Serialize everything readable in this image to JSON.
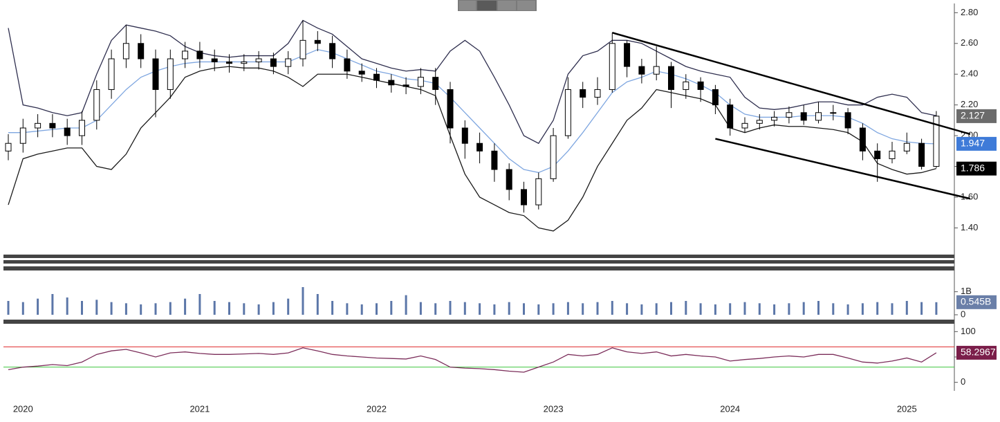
{
  "chart_data": [
    {
      "type": "candlestick",
      "categories": [
        null,
        "2020",
        null,
        null,
        null,
        null,
        null,
        null,
        null,
        null,
        null,
        null,
        null,
        "2021",
        null,
        null,
        null,
        null,
        null,
        null,
        null,
        null,
        null,
        null,
        null,
        "2022",
        null,
        null,
        null,
        null,
        null,
        null,
        null,
        null,
        null,
        null,
        null,
        "2023",
        null,
        null,
        null,
        null,
        null,
        null,
        null,
        null,
        null,
        null,
        null,
        "2024",
        null,
        null,
        null,
        null,
        null,
        null,
        null,
        null,
        null,
        null,
        null,
        "2025",
        null,
        null
      ],
      "open": [
        1.9,
        1.95,
        2.05,
        2.08,
        2.05,
        2.0,
        2.1,
        2.3,
        2.5,
        2.6,
        2.5,
        2.3,
        2.5,
        2.55,
        2.5,
        2.48,
        2.47,
        2.48,
        2.5,
        2.45,
        2.5,
        2.62,
        2.6,
        2.5,
        2.42,
        2.4,
        2.36,
        2.33,
        2.32,
        2.38,
        2.3,
        2.05,
        1.95,
        1.9,
        1.78,
        1.65,
        1.55,
        1.72,
        2.0,
        2.3,
        2.25,
        2.3,
        2.6,
        2.45,
        2.4,
        2.45,
        2.3,
        2.35,
        2.3,
        2.2,
        2.05,
        2.08,
        2.1,
        2.12,
        2.15,
        2.1,
        2.15,
        2.15,
        2.05,
        1.9,
        1.85,
        1.9,
        1.95,
        1.8
      ],
      "high": [
        2.01,
        2.11,
        2.14,
        2.14,
        2.11,
        2.16,
        2.36,
        2.56,
        2.72,
        2.66,
        2.56,
        2.56,
        2.61,
        2.61,
        2.56,
        2.53,
        2.53,
        2.55,
        2.54,
        2.55,
        2.75,
        2.68,
        2.65,
        2.56,
        2.47,
        2.44,
        2.4,
        2.38,
        2.44,
        2.44,
        2.35,
        2.1,
        2.02,
        1.95,
        1.82,
        1.7,
        1.76,
        2.05,
        2.38,
        2.35,
        2.38,
        2.67,
        2.62,
        2.5,
        2.58,
        2.48,
        2.4,
        2.38,
        2.33,
        2.24,
        2.12,
        2.14,
        2.16,
        2.19,
        2.2,
        2.22,
        2.2,
        2.18,
        2.08,
        1.95,
        1.96,
        2.02,
        1.98,
        2.16
      ],
      "low": [
        1.84,
        1.89,
        1.99,
        1.99,
        1.94,
        1.94,
        2.04,
        2.24,
        2.44,
        2.44,
        2.12,
        2.24,
        2.44,
        2.44,
        2.42,
        2.41,
        2.42,
        2.43,
        2.4,
        2.4,
        2.45,
        2.55,
        2.44,
        2.37,
        2.35,
        2.31,
        2.28,
        2.27,
        2.27,
        2.2,
        1.95,
        1.85,
        1.82,
        1.7,
        1.58,
        1.5,
        1.52,
        1.7,
        1.98,
        2.18,
        2.2,
        2.28,
        2.38,
        2.34,
        2.36,
        2.18,
        2.24,
        2.22,
        2.14,
        2.0,
        2.02,
        2.04,
        2.06,
        2.08,
        2.07,
        2.08,
        2.1,
        2.01,
        1.84,
        1.7,
        1.82,
        1.88,
        1.78,
        1.79
      ],
      "close": [
        1.95,
        2.05,
        2.08,
        2.05,
        2.0,
        2.1,
        2.3,
        2.5,
        2.6,
        2.5,
        2.3,
        2.5,
        2.55,
        2.5,
        2.48,
        2.47,
        2.48,
        2.5,
        2.45,
        2.5,
        2.62,
        2.6,
        2.5,
        2.42,
        2.4,
        2.36,
        2.33,
        2.32,
        2.38,
        2.3,
        2.05,
        1.95,
        1.9,
        1.78,
        1.65,
        1.55,
        1.72,
        2.0,
        2.3,
        2.25,
        2.3,
        2.6,
        2.45,
        2.4,
        2.45,
        2.3,
        2.35,
        2.3,
        2.2,
        2.05,
        2.08,
        2.1,
        2.12,
        2.15,
        2.1,
        2.15,
        2.15,
        2.05,
        1.9,
        1.85,
        1.9,
        1.95,
        1.8,
        2.127
      ],
      "up_color": "#ffffff",
      "down_color": "#000000",
      "bands": [
        {
          "color": "#2e2e4e",
          "values": [
            2.7,
            2.2,
            2.18,
            2.15,
            2.13,
            2.15,
            2.4,
            2.62,
            2.72,
            2.7,
            2.68,
            2.65,
            2.58,
            2.54,
            2.52,
            2.51,
            2.52,
            2.52,
            2.52,
            2.6,
            2.75,
            2.7,
            2.66,
            2.58,
            2.5,
            2.47,
            2.44,
            2.42,
            2.43,
            2.42,
            2.55,
            2.62,
            2.55,
            2.38,
            2.2,
            2.0,
            1.95,
            2.1,
            2.4,
            2.52,
            2.55,
            2.62,
            2.62,
            2.6,
            2.55,
            2.5,
            2.45,
            2.42,
            2.4,
            2.38,
            2.25,
            2.18,
            2.17,
            2.18,
            2.2,
            2.22,
            2.22,
            2.2,
            2.2,
            2.25,
            2.27,
            2.25,
            2.15,
            2.13
          ]
        },
        {
          "color": "#7ea6e0",
          "values": [
            2.02,
            2.02,
            2.03,
            2.04,
            2.05,
            2.05,
            2.1,
            2.2,
            2.3,
            2.38,
            2.42,
            2.45,
            2.47,
            2.48,
            2.48,
            2.48,
            2.48,
            2.48,
            2.48,
            2.48,
            2.52,
            2.56,
            2.54,
            2.5,
            2.46,
            2.42,
            2.4,
            2.37,
            2.36,
            2.34,
            2.25,
            2.15,
            2.05,
            1.95,
            1.85,
            1.78,
            1.76,
            1.8,
            1.9,
            2.02,
            2.15,
            2.28,
            2.35,
            2.38,
            2.42,
            2.4,
            2.37,
            2.33,
            2.28,
            2.2,
            2.14,
            2.12,
            2.12,
            2.12,
            2.13,
            2.13,
            2.13,
            2.12,
            2.08,
            2.02,
            1.98,
            1.96,
            1.95,
            1.947
          ]
        },
        {
          "color": "#1a1a1a",
          "values": [
            1.55,
            1.85,
            1.88,
            1.9,
            1.92,
            1.92,
            1.8,
            1.78,
            1.88,
            2.05,
            2.15,
            2.25,
            2.38,
            2.42,
            2.44,
            2.45,
            2.44,
            2.44,
            2.42,
            2.38,
            2.32,
            2.4,
            2.4,
            2.4,
            2.38,
            2.36,
            2.34,
            2.32,
            2.3,
            2.26,
            2.0,
            1.75,
            1.6,
            1.55,
            1.5,
            1.48,
            1.4,
            1.38,
            1.45,
            1.6,
            1.8,
            1.95,
            2.1,
            2.18,
            2.3,
            2.28,
            2.26,
            2.24,
            2.2,
            2.05,
            2.02,
            2.05,
            2.07,
            2.06,
            2.06,
            2.05,
            2.04,
            2.02,
            1.96,
            1.82,
            1.78,
            1.75,
            1.76,
            1.786
          ]
        }
      ],
      "trendlines": [
        {
          "x": [
            41,
            65.3
          ],
          "y": [
            2.67,
            2.01
          ]
        },
        {
          "x": [
            48,
            65.3
          ],
          "y": [
            1.98,
            1.59
          ]
        }
      ],
      "tags": [
        {
          "value": 2.127,
          "color": "#6b6b6b"
        },
        {
          "value": 1.947,
          "color": "#3f7bd8"
        },
        {
          "value": 1.786,
          "color": "#000000"
        }
      ],
      "ylim": [
        1.24,
        2.86
      ],
      "yticks": [
        {
          "value": 1.4,
          "label": "1.40"
        },
        {
          "value": 1.6,
          "label": "1.60"
        },
        {
          "value": 1.8,
          "label": "1.80"
        },
        {
          "value": 2.0,
          "label": "2.00"
        },
        {
          "value": 2.2,
          "label": "2.20"
        },
        {
          "value": 2.4,
          "label": "2.40"
        },
        {
          "value": 2.6,
          "label": "2.60"
        },
        {
          "value": 2.8,
          "label": "2.80"
        }
      ]
    },
    {
      "type": "bar",
      "color": "#5b76a8",
      "values": [
        0.6,
        0.55,
        0.7,
        0.9,
        0.75,
        0.6,
        0.65,
        0.55,
        0.5,
        0.45,
        0.5,
        0.55,
        0.7,
        0.9,
        0.6,
        0.55,
        0.5,
        0.45,
        0.55,
        0.7,
        1.2,
        0.9,
        0.6,
        0.5,
        0.45,
        0.5,
        0.6,
        0.85,
        0.55,
        0.5,
        0.6,
        0.55,
        0.5,
        0.45,
        0.55,
        0.5,
        0.45,
        0.5,
        0.55,
        0.5,
        0.55,
        0.6,
        0.5,
        0.45,
        0.5,
        0.55,
        0.6,
        0.5,
        0.45,
        0.5,
        0.55,
        0.5,
        0.45,
        0.5,
        0.55,
        0.6,
        0.5,
        0.45,
        0.5,
        0.55,
        0.5,
        0.6,
        0.55,
        0.545
      ],
      "tags": [
        {
          "value": 0.545,
          "label": "0.545B",
          "color": "#6a7fa8"
        }
      ],
      "ylim": [
        0,
        1.8
      ],
      "yticks": [
        0,
        {
          "value": 1,
          "label": "1B"
        }
      ]
    },
    {
      "type": "line",
      "color": "#7b2d5a",
      "values": [
        25,
        30,
        32,
        35,
        33,
        40,
        55,
        62,
        65,
        58,
        50,
        58,
        60,
        57,
        55,
        55,
        56,
        57,
        55,
        58,
        68,
        62,
        55,
        52,
        50,
        48,
        47,
        46,
        52,
        45,
        30,
        28,
        27,
        25,
        22,
        20,
        30,
        40,
        55,
        52,
        55,
        68,
        60,
        57,
        60,
        52,
        55,
        52,
        50,
        42,
        45,
        47,
        50,
        52,
        50,
        55,
        55,
        48,
        40,
        38,
        42,
        48,
        40,
        58.2967
      ],
      "levels": [
        {
          "value": 70,
          "color": "#e0262a"
        },
        {
          "value": 30,
          "color": "#3ec43e"
        }
      ],
      "tags": [
        {
          "value": 58.2967,
          "color": "#7b1e4a"
        }
      ],
      "ylim": [
        -10,
        110
      ],
      "yticks": [
        0,
        50,
        100
      ]
    }
  ]
}
